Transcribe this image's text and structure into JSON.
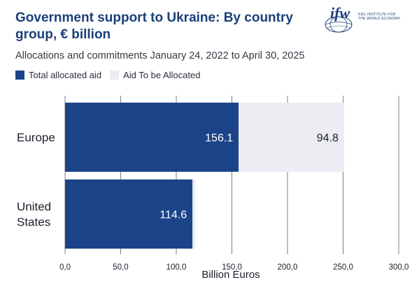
{
  "header": {
    "title": "Government support to Ukraine: By country group, € billion",
    "subtitle": "Allocations and commitments January 24, 2022 to April 30, 2025"
  },
  "logo": {
    "mark": "ifw",
    "line1": "KIEL INSTITUTE FOR",
    "line2": "THE WORLD ECONOMY"
  },
  "chart_data": {
    "type": "bar",
    "orientation": "horizontal",
    "stacked": true,
    "categories": [
      "Europe",
      "United States"
    ],
    "category_lines": [
      [
        "Europe"
      ],
      [
        "United",
        "States"
      ]
    ],
    "series": [
      {
        "name": "Total allocated aid",
        "values": [
          156.1,
          114.6
        ],
        "color": "#1b4488",
        "label_color": "#ffffff"
      },
      {
        "name": "Aid To be Allocated",
        "values": [
          94.8,
          2.6
        ],
        "color": "#ebedf3",
        "label_color": "#1b1f2a"
      }
    ],
    "data_labels": [
      [
        "156.1",
        "114.6"
      ],
      [
        "94.8",
        ""
      ]
    ],
    "xlim": [
      0,
      300
    ],
    "xticks": [
      0,
      50,
      100,
      150,
      200,
      250,
      300
    ],
    "xtick_labels": [
      "0,0",
      "50,0",
      "100,0",
      "150,0",
      "200,0",
      "250,0",
      "300,0"
    ],
    "xlabel": "Billion Euros",
    "grid": "vertical",
    "legend": "top-left"
  }
}
